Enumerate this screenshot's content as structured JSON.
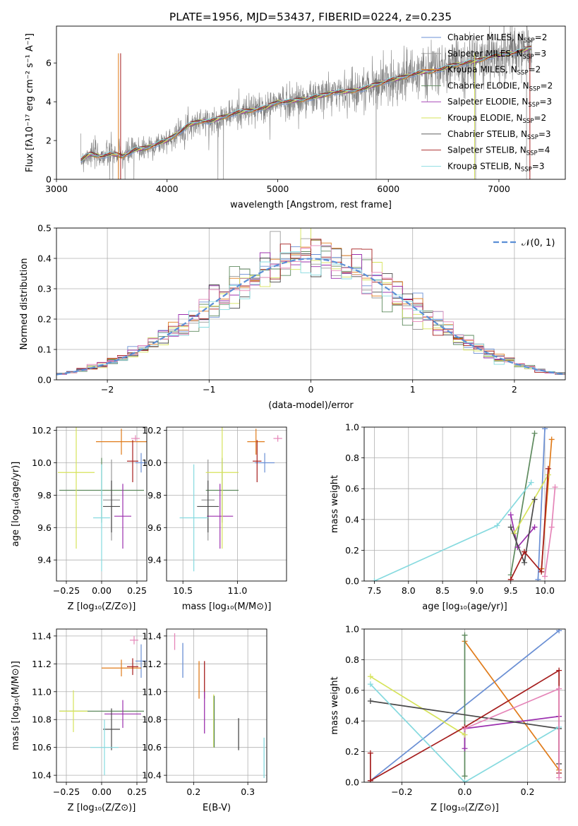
{
  "figure": {
    "title": "PLATE=1956, MJD=53437, FIBERID=0224, z=0.235"
  },
  "colors": {
    "Chabrier MILES": "#6a8fd4",
    "Salpeter MILES": "#9a9a9a",
    "Kroupa MILES": "#e07b1a",
    "Chabrier ELODIE": "#5e8a5e",
    "Salpeter ELODIE": "#9b2fae",
    "Kroupa ELODIE": "#d6e35a",
    "Chabrier STELIB": "#4a4a4a",
    "Salpeter STELIB": "#a51d1d",
    "Kroupa STELIB": "#86dadf",
    "extra": "#e585b8",
    "normal": "#5b8fd6",
    "data": "#7f7f7f",
    "grid": "#b0b0b0"
  },
  "chart_data": [
    {
      "id": "spectrum",
      "type": "line",
      "title": "PLATE=1956, MJD=53437, FIBERID=0224, z=0.235",
      "xlabel": "wavelength [Angstrom, rest frame]",
      "ylabel": "Flux [fλ10⁻¹⁷ erg cm⁻² s⁻¹ A⁻¹]",
      "xlim": [
        3000,
        7600
      ],
      "ylim": [
        0,
        7.9
      ],
      "xticks": [
        3000,
        4000,
        5000,
        6000,
        7000
      ],
      "yticks": [
        0,
        2,
        4,
        6
      ],
      "grid": false,
      "legend_position": "top-right",
      "continuum": {
        "x": [
          3220,
          3300,
          3400,
          3500,
          3600,
          3700,
          3800,
          3900,
          4000,
          4100,
          4200,
          4300,
          4400,
          4500,
          4600,
          4700,
          4800,
          4900,
          5000,
          5100,
          5200,
          5300,
          5400,
          5500,
          5600,
          5700,
          5800,
          5900,
          6000,
          6100,
          6200,
          6300,
          6400,
          6500,
          6600,
          6700,
          6800,
          6900,
          7000,
          7100,
          7200,
          7300
        ],
        "y": [
          1.0,
          1.3,
          1.2,
          1.3,
          1.2,
          1.5,
          1.6,
          1.8,
          2.0,
          2.4,
          2.8,
          3.0,
          3.0,
          3.2,
          3.4,
          3.5,
          3.6,
          3.7,
          4.0,
          4.0,
          4.1,
          4.2,
          4.3,
          4.5,
          4.5,
          4.6,
          4.7,
          4.9,
          5.1,
          5.2,
          5.4,
          5.5,
          5.6,
          5.7,
          5.9,
          6.0,
          6.1,
          6.3,
          6.4,
          6.5,
          6.6,
          6.8
        ]
      },
      "legend": [
        {
          "label": "Chabrier MILES, N",
          "sub": "SSP",
          "suffix": "=2",
          "color_key": "Chabrier MILES"
        },
        {
          "label": "Salpeter MILES, N",
          "sub": "SSP",
          "suffix": "=3",
          "color_key": "Salpeter MILES"
        },
        {
          "label": "Kroupa MILES, N",
          "sub": "SSP",
          "suffix": "=2",
          "color_key": "Kroupa MILES"
        },
        {
          "label": "Chabrier ELODIE, N",
          "sub": "SSP",
          "suffix": "=2",
          "color_key": "Chabrier ELODIE"
        },
        {
          "label": "Salpeter ELODIE, N",
          "sub": "SSP",
          "suffix": "=3",
          "color_key": "Salpeter ELODIE"
        },
        {
          "label": "Kroupa ELODIE, N",
          "sub": "SSP",
          "suffix": "=2",
          "color_key": "Kroupa ELODIE"
        },
        {
          "label": "Chabrier STELIB, N",
          "sub": "SSP",
          "suffix": "=3",
          "color_key": "Chabrier STELIB"
        },
        {
          "label": "Salpeter STELIB, N",
          "sub": "SSP",
          "suffix": "=4",
          "color_key": "Salpeter STELIB"
        },
        {
          "label": "Kroupa STELIB, N",
          "sub": "SSP",
          "suffix": "=3",
          "color_key": "Kroupa STELIB"
        }
      ]
    },
    {
      "id": "histogram",
      "type": "histogram",
      "xlabel": "(data-model)/error",
      "ylabel": "Normed distribution",
      "xlim": [
        -2.5,
        2.5
      ],
      "ylim": [
        0,
        0.5
      ],
      "xticks": [
        -2,
        -1,
        0,
        1,
        2
      ],
      "yticks": [
        0.0,
        0.1,
        0.2,
        0.3,
        0.4,
        0.5
      ],
      "grid": true,
      "legend_position": "top-right",
      "legend_label": "𝒩(0, 1)",
      "bin_width": 0.1
    },
    {
      "id": "age-vs-Z",
      "type": "scatter",
      "xlabel": "Z [log₁₀(Z/Z⊙)]",
      "ylabel": "age  [log₁₀(age/yr)]",
      "xlim": [
        -0.32,
        0.32
      ],
      "ylim": [
        9.27,
        10.22
      ],
      "xticks": [
        -0.25,
        0.0,
        0.25
      ],
      "yticks": [
        9.4,
        9.6,
        9.8,
        10.0,
        10.2
      ],
      "grid": true,
      "points": [
        {
          "color_key": "Chabrier MILES",
          "x": 0.28,
          "y": 10.0,
          "xerr": 0.04,
          "yerr": 0.06
        },
        {
          "color_key": "Salpeter MILES",
          "x": 0.07,
          "y": 9.77,
          "xerr": 0.06,
          "yerr": 0.25
        },
        {
          "color_key": "Kroupa MILES",
          "x": 0.14,
          "y": 10.13,
          "xerr": 0.18,
          "yerr": 0.08
        },
        {
          "color_key": "Chabrier ELODIE",
          "x": 0.0,
          "y": 9.83,
          "xerr": 0.3,
          "yerr": 0.2
        },
        {
          "color_key": "Salpeter ELODIE",
          "x": 0.15,
          "y": 9.67,
          "xerr": 0.06,
          "yerr": 0.2
        },
        {
          "color_key": "Kroupa ELODIE",
          "x": -0.18,
          "y": 9.94,
          "xerr": 0.13,
          "yerr": 0.47
        },
        {
          "color_key": "Chabrier STELIB",
          "x": 0.07,
          "y": 9.73,
          "xerr": 0.06,
          "yerr": 0.16
        },
        {
          "color_key": "Salpeter STELIB",
          "x": 0.22,
          "y": 10.01,
          "xerr": 0.04,
          "yerr": 0.13
        },
        {
          "color_key": "Kroupa STELIB",
          "x": 0.0,
          "y": 9.66,
          "xerr": 0.06,
          "yerr": 0.33
        },
        {
          "color_key": "extra",
          "x": 0.24,
          "y": 10.15,
          "xerr": 0.03,
          "yerr": 0.02
        }
      ]
    },
    {
      "id": "age-vs-mass",
      "type": "scatter",
      "xlabel": "mass [log₁₀(M/M⊙)]",
      "xlim": [
        10.35,
        11.45
      ],
      "ylim": [
        9.27,
        10.22
      ],
      "xticks": [
        10.5,
        11.0
      ],
      "yticks": [
        9.4,
        9.6,
        9.8,
        10.0,
        10.2
      ],
      "grid": true,
      "points": [
        {
          "color_key": "Chabrier MILES",
          "x": 11.25,
          "y": 10.0,
          "xerr": 0.09,
          "yerr": 0.06
        },
        {
          "color_key": "Salpeter MILES",
          "x": 10.73,
          "y": 9.77,
          "xerr": 0.06,
          "yerr": 0.25
        },
        {
          "color_key": "Kroupa MILES",
          "x": 11.17,
          "y": 10.13,
          "xerr": 0.08,
          "yerr": 0.08
        },
        {
          "color_key": "Chabrier ELODIE",
          "x": 10.86,
          "y": 9.83,
          "xerr": 0.15,
          "yerr": 0.2
        },
        {
          "color_key": "Salpeter ELODIE",
          "x": 10.84,
          "y": 9.67,
          "xerr": 0.12,
          "yerr": 0.2
        },
        {
          "color_key": "Kroupa ELODIE",
          "x": 10.86,
          "y": 9.94,
          "xerr": 0.15,
          "yerr": 0.47
        },
        {
          "color_key": "Chabrier STELIB",
          "x": 10.73,
          "y": 9.73,
          "xerr": 0.1,
          "yerr": 0.16
        },
        {
          "color_key": "Salpeter STELIB",
          "x": 11.18,
          "y": 10.01,
          "xerr": 0.04,
          "yerr": 0.13
        },
        {
          "color_key": "Kroupa STELIB",
          "x": 10.6,
          "y": 9.66,
          "xerr": 0.13,
          "yerr": 0.33
        },
        {
          "color_key": "extra",
          "x": 11.37,
          "y": 10.15,
          "xerr": 0.04,
          "yerr": 0.02
        }
      ]
    },
    {
      "id": "weight-vs-age",
      "type": "line",
      "xlabel": "age  [log₁₀(age/yr)]",
      "ylabel": "mass weight",
      "xlim": [
        7.35,
        10.3
      ],
      "ylim": [
        0,
        1
      ],
      "xticks": [
        7.5,
        8.0,
        8.5,
        9.0,
        9.5,
        10.0
      ],
      "yticks": [
        0.0,
        0.2,
        0.4,
        0.6,
        0.8,
        1.0
      ],
      "grid": true,
      "series": [
        {
          "color_key": "Chabrier MILES",
          "x": [
            9.9,
            10.0
          ],
          "y": [
            0.01,
            0.99
          ]
        },
        {
          "color_key": "Kroupa MILES",
          "x": [
            9.95,
            10.1
          ],
          "y": [
            0.08,
            0.92
          ]
        },
        {
          "color_key": "Chabrier ELODIE",
          "x": [
            9.5,
            9.85
          ],
          "y": [
            0.04,
            0.96
          ]
        },
        {
          "color_key": "Salpeter ELODIE",
          "x": [
            9.5,
            9.6,
            9.85
          ],
          "y": [
            0.43,
            0.22,
            0.35
          ]
        },
        {
          "color_key": "Kroupa ELODIE",
          "x": [
            9.55,
            10.05
          ],
          "y": [
            0.31,
            0.69
          ]
        },
        {
          "color_key": "Chabrier STELIB",
          "x": [
            9.5,
            9.7,
            9.85
          ],
          "y": [
            0.35,
            0.12,
            0.53
          ]
        },
        {
          "color_key": "Salpeter STELIB",
          "x": [
            9.5,
            9.7,
            9.95,
            10.05
          ],
          "y": [
            0.01,
            0.19,
            0.06,
            0.73
          ]
        },
        {
          "color_key": "Kroupa STELIB",
          "x": [
            7.5,
            9.3,
            9.8
          ],
          "y": [
            0.0,
            0.36,
            0.64
          ]
        },
        {
          "color_key": "extra",
          "x": [
            10.0,
            10.1,
            10.15
          ],
          "y": [
            0.03,
            0.35,
            0.61
          ]
        }
      ]
    },
    {
      "id": "mass-vs-Z",
      "type": "scatter",
      "xlabel": "Z [log₁₀(Z/Z⊙)]",
      "ylabel": "mass [log₁₀(M/M⊙)]",
      "xlim": [
        -0.32,
        0.32
      ],
      "ylim": [
        10.35,
        11.45
      ],
      "xticks": [
        -0.25,
        0.0,
        0.25
      ],
      "yticks": [
        10.4,
        10.6,
        10.8,
        11.0,
        11.2,
        11.4
      ],
      "grid": true,
      "points": [
        {
          "color_key": "Chabrier MILES",
          "x": 0.28,
          "y": 11.22,
          "xerr": 0.04,
          "yerr": 0.12
        },
        {
          "color_key": "Kroupa MILES",
          "x": 0.14,
          "y": 11.17,
          "xerr": 0.14,
          "yerr": 0.06
        },
        {
          "color_key": "Chabrier ELODIE",
          "x": 0.0,
          "y": 10.86,
          "xerr": 0.3,
          "yerr": 0.0
        },
        {
          "color_key": "Salpeter ELODIE",
          "x": 0.15,
          "y": 10.84,
          "xerr": 0.13,
          "yerr": 0.1
        },
        {
          "color_key": "Kroupa ELODIE",
          "x": -0.2,
          "y": 10.86,
          "xerr": 0.1,
          "yerr": 0.15
        },
        {
          "color_key": "Chabrier STELIB",
          "x": 0.07,
          "y": 10.73,
          "xerr": 0.06,
          "yerr": 0.15
        },
        {
          "color_key": "Salpeter STELIB",
          "x": 0.22,
          "y": 11.18,
          "xerr": 0.04,
          "yerr": 0.06
        },
        {
          "color_key": "Kroupa STELIB",
          "x": 0.02,
          "y": 10.6,
          "xerr": 0.1,
          "yerr": 0.2
        },
        {
          "color_key": "extra",
          "x": 0.23,
          "y": 11.37,
          "xerr": 0.03,
          "yerr": 0.03
        }
      ]
    },
    {
      "id": "mass-vs-ebv",
      "type": "bar",
      "xlabel": "E(B-V)",
      "xlim": [
        0.15,
        0.335
      ],
      "ylim": [
        10.35,
        11.45
      ],
      "xticks": [
        0.2,
        0.3
      ],
      "yticks": [
        10.4,
        10.6,
        10.8,
        11.0,
        11.2,
        11.4
      ],
      "grid": true,
      "segments": [
        {
          "color_key": "extra",
          "x": 0.165,
          "y0": 11.3,
          "y1": 11.42
        },
        {
          "color_key": "Chabrier MILES",
          "x": 0.18,
          "y0": 11.1,
          "y1": 11.35
        },
        {
          "color_key": "Kroupa MILES",
          "x": 0.21,
          "y0": 10.95,
          "y1": 11.22
        },
        {
          "color_key": "Salpeter STELIB",
          "x": 0.22,
          "y0": 10.95,
          "y1": 11.22
        },
        {
          "color_key": "Salpeter ELODIE",
          "x": 0.22,
          "y0": 10.7,
          "y1": 11.0
        },
        {
          "color_key": "Kroupa ELODIE",
          "x": 0.237,
          "y0": 10.6,
          "y1": 10.98
        },
        {
          "color_key": "Chabrier ELODIE",
          "x": 0.238,
          "y0": 10.6,
          "y1": 10.97
        },
        {
          "color_key": "Chabrier STELIB",
          "x": 0.283,
          "y0": 10.58,
          "y1": 10.81
        },
        {
          "color_key": "Kroupa STELIB",
          "x": 0.33,
          "y0": 10.38,
          "y1": 10.67
        }
      ]
    },
    {
      "id": "weight-vs-Z",
      "type": "line",
      "xlabel": "Z [log₁₀(Z/Z⊙)]",
      "ylabel": "mass weight",
      "xlim": [
        -0.32,
        0.32
      ],
      "ylim": [
        0,
        1
      ],
      "xticks": [
        -0.2,
        0.0,
        0.2
      ],
      "yticks": [
        0.0,
        0.2,
        0.4,
        0.6,
        0.8,
        1.0
      ],
      "grid": true,
      "series": [
        {
          "color_key": "Chabrier MILES",
          "x": [
            -0.3,
            0.3
          ],
          "y": [
            0.01,
            0.99
          ]
        },
        {
          "color_key": "Kroupa MILES",
          "x": [
            0.0,
            0.3
          ],
          "y": [
            0.92,
            0.08
          ]
        },
        {
          "color_key": "Chabrier ELODIE",
          "x": [
            0.0,
            0.0
          ],
          "y": [
            0.04,
            0.96
          ]
        },
        {
          "color_key": "Salpeter ELODIE",
          "x": [
            0.0,
            0.0,
            0.3
          ],
          "y": [
            0.22,
            0.35,
            0.43
          ]
        },
        {
          "color_key": "Kroupa ELODIE",
          "x": [
            -0.3,
            0.0
          ],
          "y": [
            0.69,
            0.31
          ]
        },
        {
          "color_key": "Chabrier STELIB",
          "x": [
            -0.3,
            0.3,
            0.3
          ],
          "y": [
            0.53,
            0.35,
            0.12
          ]
        },
        {
          "color_key": "Salpeter STELIB",
          "x": [
            -0.3,
            -0.3,
            0.0,
            0.3,
            0.3
          ],
          "y": [
            0.19,
            0.01,
            0.36,
            0.73,
            0.06
          ]
        },
        {
          "color_key": "Kroupa STELIB",
          "x": [
            -0.3,
            0.0,
            0.3
          ],
          "y": [
            0.64,
            0.0,
            0.36
          ]
        },
        {
          "color_key": "extra",
          "x": [
            0.0,
            0.3,
            0.3
          ],
          "y": [
            0.35,
            0.61,
            0.03
          ]
        }
      ]
    }
  ]
}
